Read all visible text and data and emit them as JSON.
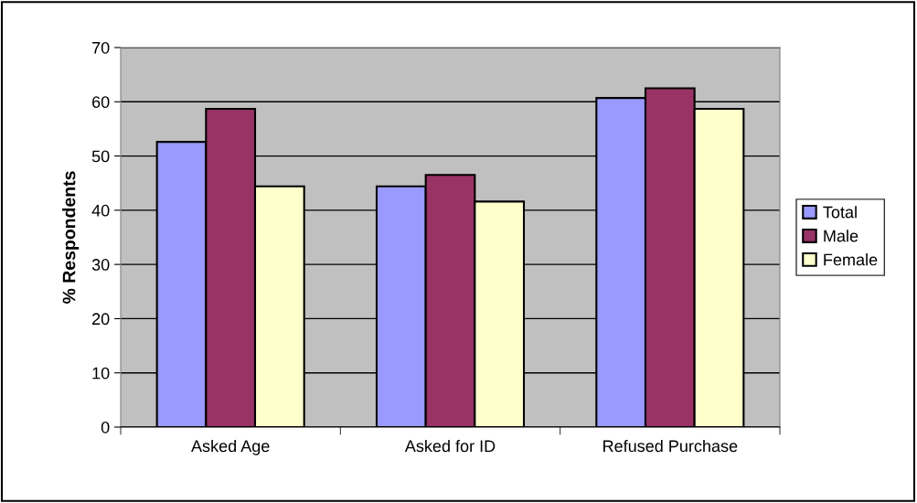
{
  "chart_data": {
    "type": "bar",
    "ylabel": "% Respondents",
    "categories": [
      "Asked Age",
      "Asked for ID",
      "Refused Purchase"
    ],
    "series": [
      {
        "name": "Total",
        "color": "#9999ff",
        "values": [
          52.6,
          44.4,
          60.7
        ]
      },
      {
        "name": "Male",
        "color": "#993366",
        "values": [
          58.7,
          46.5,
          62.5
        ]
      },
      {
        "name": "Female",
        "color": "#ffffcc",
        "values": [
          44.4,
          41.6,
          58.7
        ]
      }
    ],
    "ylim": [
      0,
      70
    ],
    "yticks": [
      0,
      10,
      20,
      30,
      40,
      50,
      60,
      70
    ],
    "grid": "y",
    "legend": "right"
  }
}
